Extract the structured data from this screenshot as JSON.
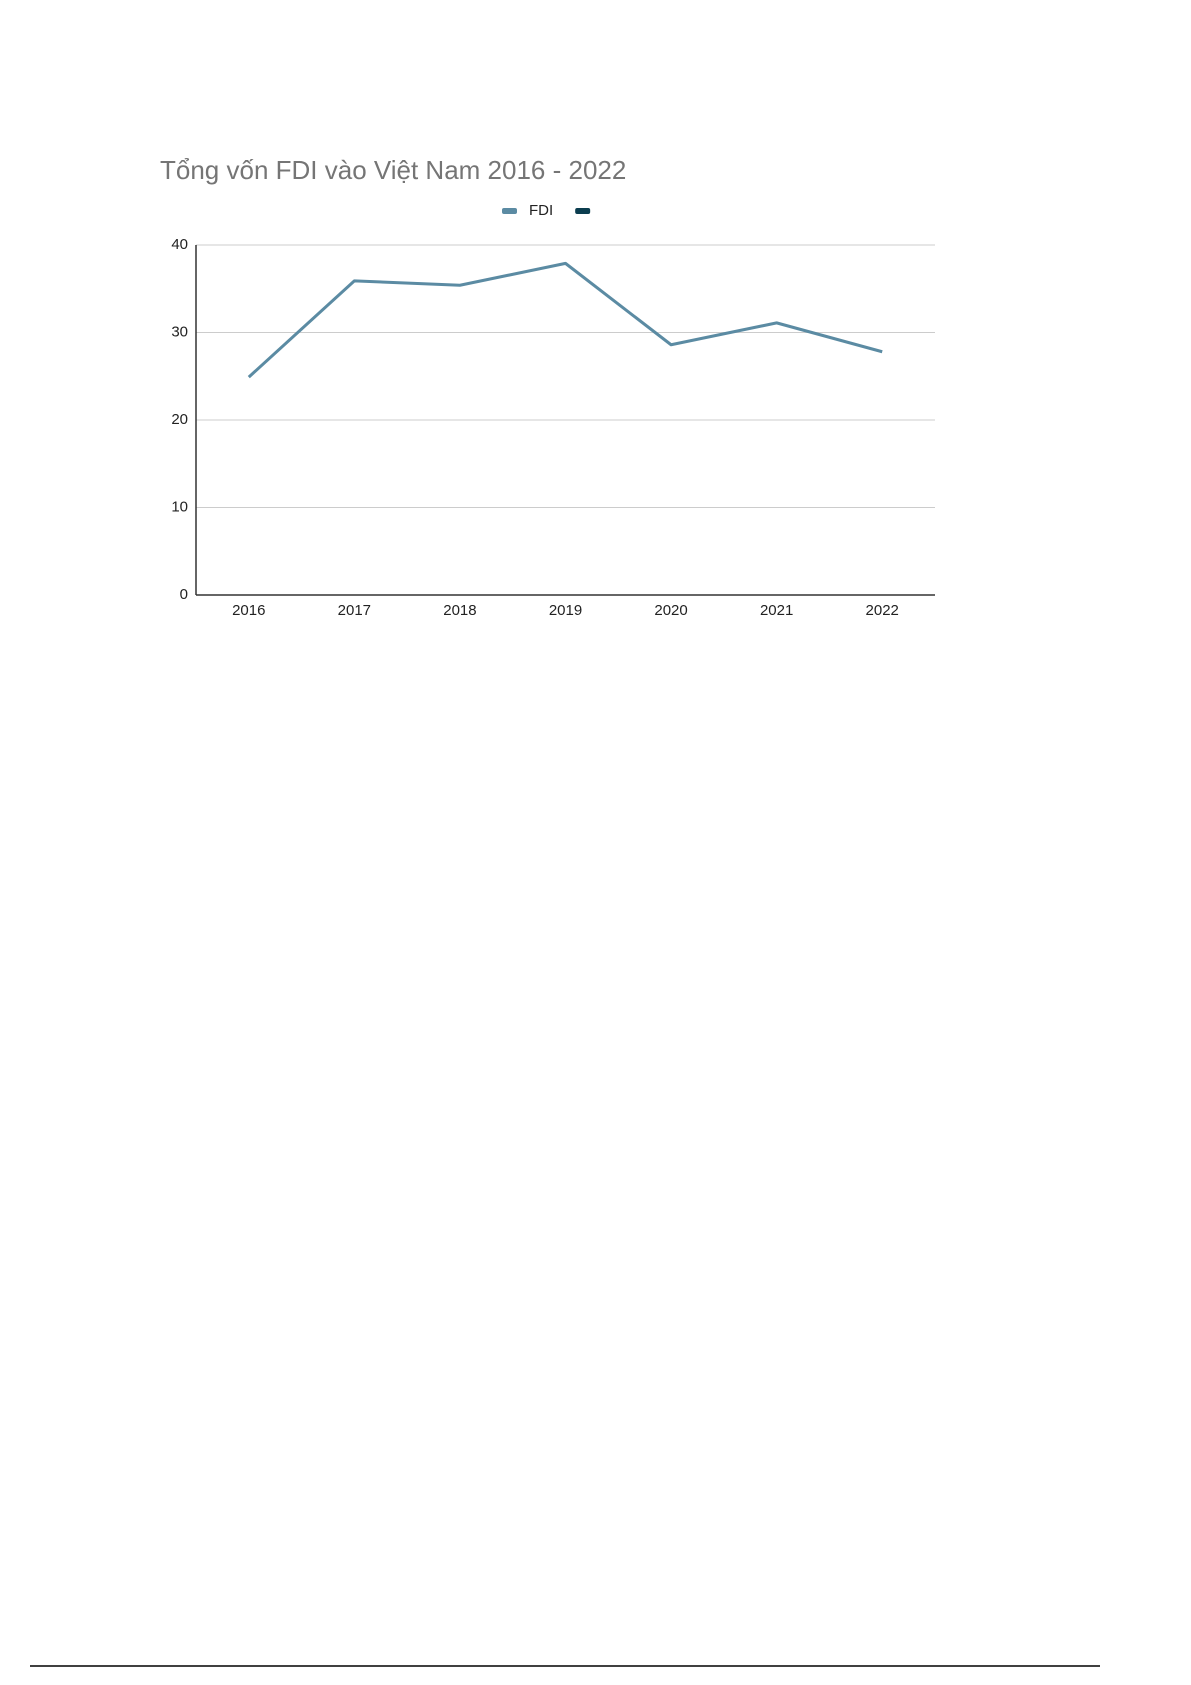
{
  "chart_data": {
    "type": "line",
    "title": "Tổng vốn FDI vào Việt Nam 2016 - 2022",
    "categories": [
      "2016",
      "2017",
      "2018",
      "2019",
      "2020",
      "2021",
      "2022"
    ],
    "series": [
      {
        "name": "FDI",
        "color": "#5b8ba3",
        "values": [
          24.9,
          35.9,
          35.4,
          37.9,
          28.6,
          31.1,
          27.8
        ]
      },
      {
        "color": "#0b3d4f"
      }
    ],
    "ylim": [
      0,
      40
    ],
    "yticks": [
      0,
      10,
      20,
      30,
      40
    ],
    "grid": true,
    "legend": "top"
  }
}
